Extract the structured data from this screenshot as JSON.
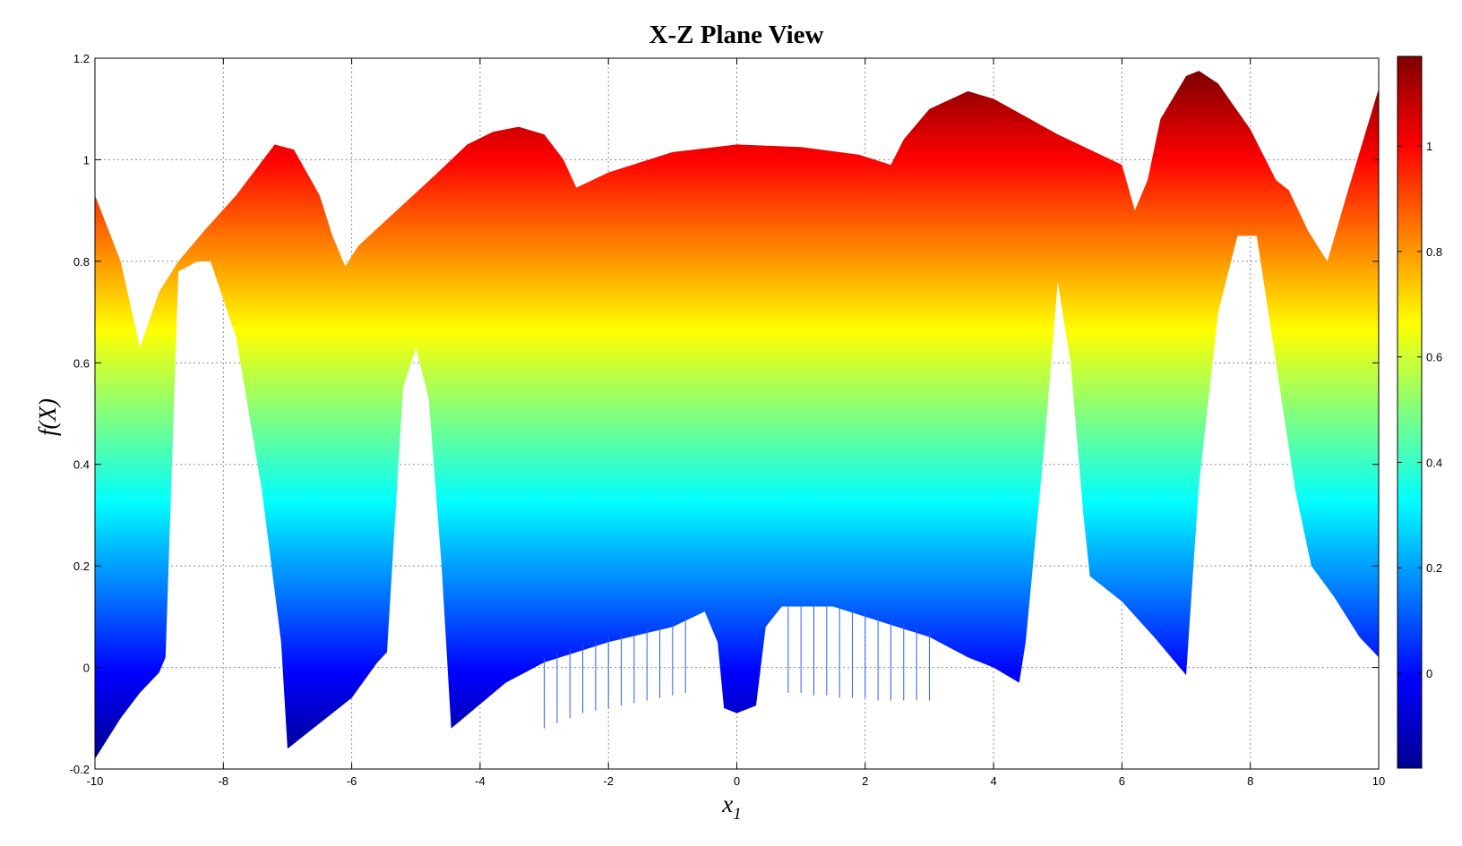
{
  "chart_data": {
    "type": "scatter",
    "title": "X-Z Plane View",
    "xlabel": "x",
    "xlabel_subscript": "1",
    "ylabel": "f(X)",
    "xlim": [
      -10,
      10
    ],
    "ylim": [
      -0.2,
      1.2
    ],
    "x_ticks": [
      -10,
      -8,
      -6,
      -4,
      -2,
      0,
      2,
      4,
      6,
      8,
      10
    ],
    "y_ticks": [
      -0.2,
      0,
      0.2,
      0.4,
      0.6,
      0.8,
      1,
      1.2
    ],
    "grid": true,
    "colormap": "jet",
    "colorbar": {
      "position": "right",
      "clim": [
        -0.18,
        1.17
      ],
      "ticks": [
        0,
        0.2,
        0.4,
        0.6,
        0.8,
        1
      ]
    },
    "upper_envelope": [
      [
        -10,
        0.93
      ],
      [
        -9.6,
        0.8
      ],
      [
        -9.3,
        0.63
      ],
      [
        -9.0,
        0.74
      ],
      [
        -8.7,
        0.8
      ],
      [
        -8.3,
        0.86
      ],
      [
        -7.8,
        0.93
      ],
      [
        -7.2,
        1.03
      ],
      [
        -6.9,
        1.02
      ],
      [
        -6.5,
        0.93
      ],
      [
        -6.3,
        0.85
      ],
      [
        -6.1,
        0.79
      ],
      [
        -5.9,
        0.83
      ],
      [
        -5.3,
        0.9
      ],
      [
        -4.7,
        0.97
      ],
      [
        -4.2,
        1.03
      ],
      [
        -3.8,
        1.055
      ],
      [
        -3.4,
        1.065
      ],
      [
        -3.0,
        1.05
      ],
      [
        -2.7,
        1.0
      ],
      [
        -2.5,
        0.945
      ],
      [
        -2.0,
        0.975
      ],
      [
        -1.0,
        1.015
      ],
      [
        0,
        1.03
      ],
      [
        1.0,
        1.025
      ],
      [
        1.9,
        1.01
      ],
      [
        2.4,
        0.99
      ],
      [
        2.6,
        1.04
      ],
      [
        3.0,
        1.1
      ],
      [
        3.6,
        1.135
      ],
      [
        4.0,
        1.12
      ],
      [
        5.0,
        1.05
      ],
      [
        6.0,
        0.99
      ],
      [
        6.2,
        0.9
      ],
      [
        6.4,
        0.96
      ],
      [
        6.6,
        1.08
      ],
      [
        7.0,
        1.165
      ],
      [
        7.2,
        1.175
      ],
      [
        7.5,
        1.15
      ],
      [
        8.0,
        1.06
      ],
      [
        8.2,
        1.01
      ],
      [
        8.4,
        0.96
      ],
      [
        8.6,
        0.94
      ],
      [
        8.9,
        0.86
      ],
      [
        9.2,
        0.8
      ],
      [
        9.5,
        0.93
      ],
      [
        10,
        1.14
      ]
    ],
    "lower_envelope": [
      [
        -10,
        -0.18
      ],
      [
        -9.6,
        -0.1
      ],
      [
        -9.3,
        -0.05
      ],
      [
        -9.0,
        -0.01
      ],
      [
        -8.9,
        0.02
      ],
      [
        -8.7,
        0.78
      ],
      [
        -8.4,
        0.8
      ],
      [
        -8.2,
        0.8
      ],
      [
        -7.8,
        0.65
      ],
      [
        -7.4,
        0.35
      ],
      [
        -7.1,
        0.05
      ],
      [
        -7.0,
        -0.16
      ],
      [
        -6.6,
        -0.12
      ],
      [
        -6.0,
        -0.06
      ],
      [
        -5.6,
        0.01
      ],
      [
        -5.45,
        0.03
      ],
      [
        -5.2,
        0.55
      ],
      [
        -5.0,
        0.63
      ],
      [
        -4.8,
        0.53
      ],
      [
        -4.6,
        0.2
      ],
      [
        -4.45,
        -0.12
      ],
      [
        -3.6,
        -0.03
      ],
      [
        -3.0,
        0.01
      ],
      [
        -2.0,
        0.05
      ],
      [
        -1.0,
        0.08
      ],
      [
        -0.5,
        0.11
      ],
      [
        -0.3,
        0.05
      ],
      [
        -0.2,
        -0.08
      ],
      [
        0.0,
        -0.09
      ],
      [
        0.3,
        -0.075
      ],
      [
        0.45,
        0.08
      ],
      [
        0.7,
        0.12
      ],
      [
        1.5,
        0.12
      ],
      [
        2.0,
        0.1
      ],
      [
        3.0,
        0.06
      ],
      [
        3.6,
        0.02
      ],
      [
        4.0,
        0.0
      ],
      [
        4.4,
        -0.03
      ],
      [
        4.5,
        0.05
      ],
      [
        4.8,
        0.45
      ],
      [
        5.0,
        0.76
      ],
      [
        5.2,
        0.6
      ],
      [
        5.4,
        0.3
      ],
      [
        5.5,
        0.18
      ],
      [
        6.0,
        0.13
      ],
      [
        6.5,
        0.06
      ],
      [
        7.0,
        -0.015
      ],
      [
        7.05,
        0.08
      ],
      [
        7.2,
        0.36
      ],
      [
        7.5,
        0.7
      ],
      [
        7.8,
        0.85
      ],
      [
        8.1,
        0.85
      ],
      [
        8.4,
        0.6
      ],
      [
        8.7,
        0.35
      ],
      [
        8.95,
        0.2
      ],
      [
        9.3,
        0.14
      ],
      [
        9.7,
        0.06
      ],
      [
        10,
        0.02
      ]
    ],
    "stalactite_spikes": [
      [
        -3.0,
        -0.12
      ],
      [
        -2.8,
        -0.11
      ],
      [
        -2.6,
        -0.1
      ],
      [
        -2.4,
        -0.09
      ],
      [
        -2.2,
        -0.085
      ],
      [
        -2.0,
        -0.08
      ],
      [
        -1.8,
        -0.075
      ],
      [
        -1.6,
        -0.07
      ],
      [
        -1.4,
        -0.065
      ],
      [
        -1.2,
        -0.06
      ],
      [
        -1.0,
        -0.055
      ],
      [
        -0.8,
        -0.05
      ],
      [
        0.8,
        -0.05
      ],
      [
        1.0,
        -0.05
      ],
      [
        1.2,
        -0.055
      ],
      [
        1.4,
        -0.055
      ],
      [
        1.6,
        -0.06
      ],
      [
        1.8,
        -0.06
      ],
      [
        2.0,
        -0.06
      ],
      [
        2.2,
        -0.065
      ],
      [
        2.4,
        -0.065
      ],
      [
        2.6,
        -0.065
      ],
      [
        2.8,
        -0.065
      ],
      [
        3.0,
        -0.065
      ]
    ]
  }
}
